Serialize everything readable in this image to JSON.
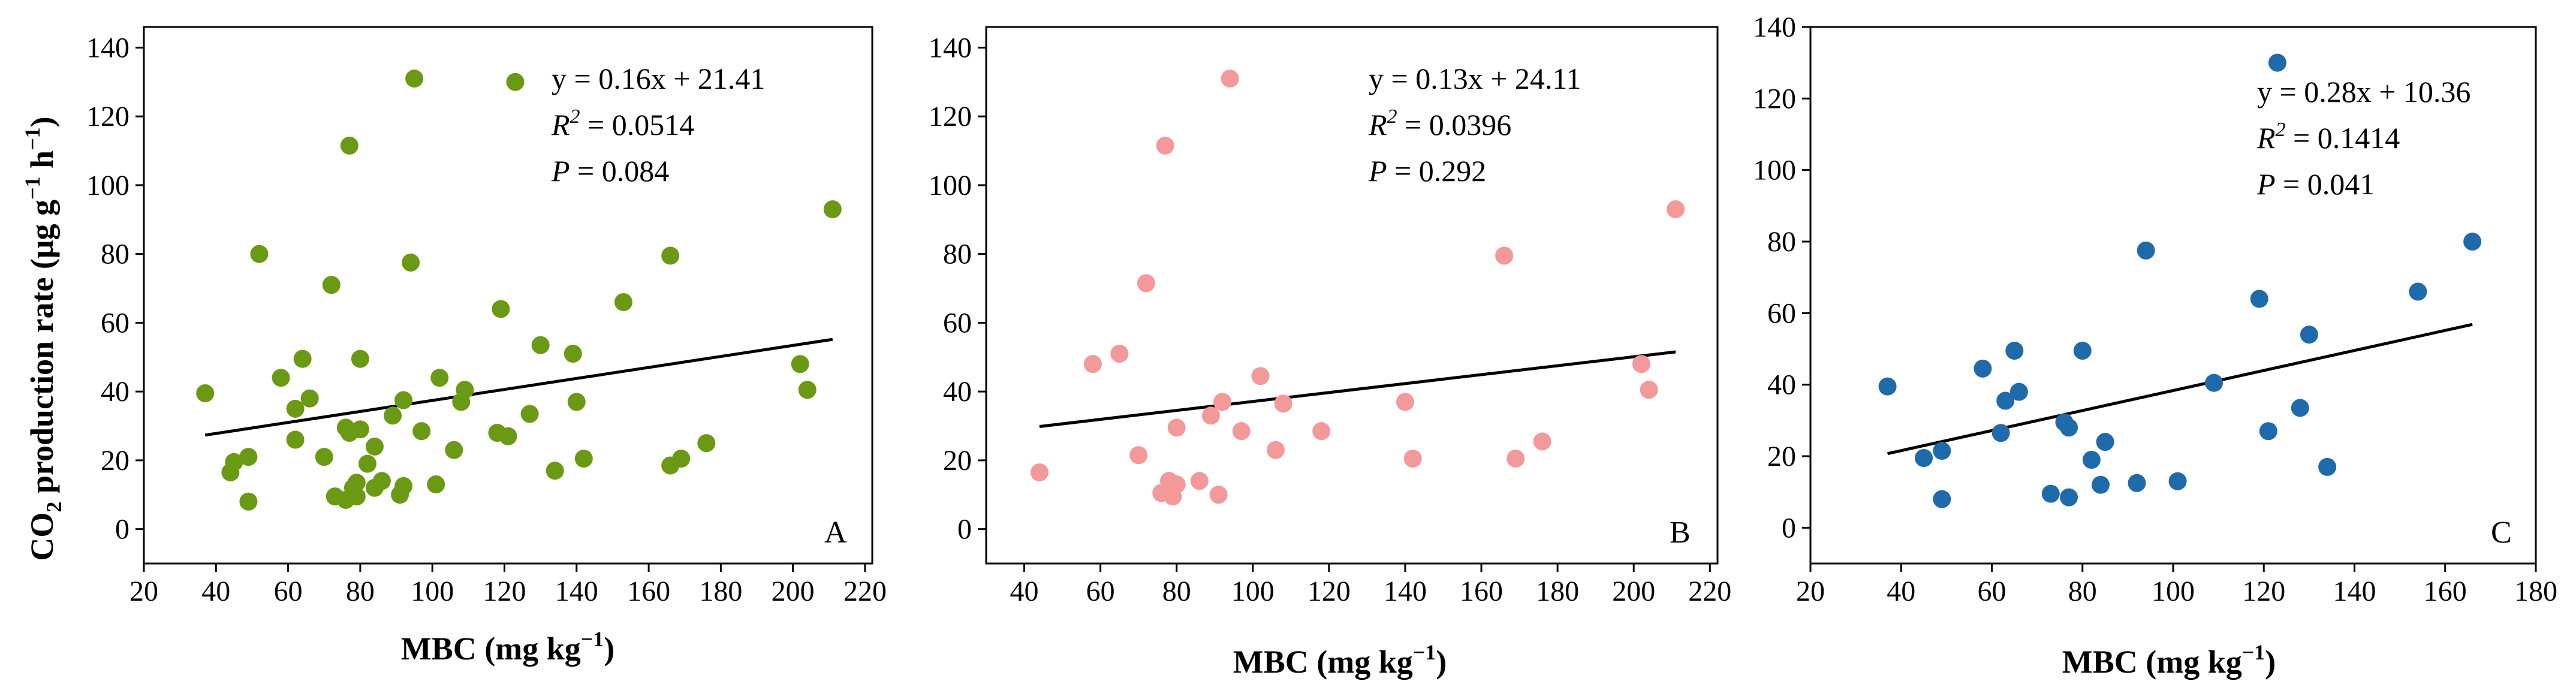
{
  "ylabel_parts": {
    "a": "CO",
    "sub": "2",
    "b": " production rate (μg g",
    "sup1": "−1",
    "c": " h",
    "sup2": "−1",
    "d": ")"
  },
  "colors": {
    "panelA": "#6a9a14",
    "panelB": "#f4999a",
    "panelC": "#1f6aab",
    "fit": "#000000"
  },
  "chart_data": [
    {
      "type": "scatter",
      "panel_letter": "A",
      "xlabel": "MBC (mg kg",
      "xlabel_sup": "−1",
      "xlabel_end": ")",
      "xlim": [
        20,
        222
      ],
      "ylim": [
        -10,
        146
      ],
      "xticks": [
        "20",
        "40",
        "60",
        "80",
        "100",
        "120",
        "140",
        "160",
        "180",
        "200",
        "220"
      ],
      "yticks": [
        "0",
        "20",
        "40",
        "60",
        "80",
        "100",
        "120",
        "140"
      ],
      "equation": "y = 0.16x + 21.41",
      "r2_label": "R",
      "r2_sup": "2",
      "r2_value": " = 0.0514",
      "p_label": "P",
      "p_value": " = 0.084",
      "fit": {
        "slope": 0.16,
        "intercept": 21.41,
        "x_range": [
          37,
          211
        ]
      },
      "points": [
        [
          37,
          39.5
        ],
        [
          44,
          16.5
        ],
        [
          45,
          19.5
        ],
        [
          49,
          21
        ],
        [
          49,
          8
        ],
        [
          52,
          80
        ],
        [
          58,
          44
        ],
        [
          62,
          26
        ],
        [
          62,
          35
        ],
        [
          64,
          49.5
        ],
        [
          66,
          38
        ],
        [
          70,
          21
        ],
        [
          72,
          71
        ],
        [
          73,
          9.5
        ],
        [
          76,
          8.5
        ],
        [
          76,
          29.5
        ],
        [
          77,
          111.5
        ],
        [
          77,
          28
        ],
        [
          78,
          12
        ],
        [
          79,
          13.5
        ],
        [
          79,
          9.5
        ],
        [
          80,
          29
        ],
        [
          80,
          49.5
        ],
        [
          82,
          19
        ],
        [
          84,
          24
        ],
        [
          84,
          12
        ],
        [
          86,
          14
        ],
        [
          89,
          33
        ],
        [
          91,
          10
        ],
        [
          92,
          12.5
        ],
        [
          92,
          37.5
        ],
        [
          94,
          77.5
        ],
        [
          95,
          131
        ],
        [
          97,
          28.5
        ],
        [
          101,
          13
        ],
        [
          102,
          44
        ],
        [
          106,
          23
        ],
        [
          108,
          37
        ],
        [
          109,
          40.5
        ],
        [
          118,
          28
        ],
        [
          119,
          64
        ],
        [
          121,
          27
        ],
        [
          123,
          130
        ],
        [
          127,
          33.5
        ],
        [
          130,
          53.5
        ],
        [
          134,
          17
        ],
        [
          139,
          51
        ],
        [
          140,
          37
        ],
        [
          142,
          20.5
        ],
        [
          153,
          66
        ],
        [
          166,
          79.5
        ],
        [
          166,
          18.5
        ],
        [
          169,
          20.5
        ],
        [
          176,
          25
        ],
        [
          202,
          48
        ],
        [
          204,
          40.5
        ],
        [
          211,
          93
        ]
      ]
    },
    {
      "type": "scatter",
      "panel_letter": "B",
      "xlabel": "MBC (mg kg",
      "xlabel_sup": "−1",
      "xlabel_end": ")",
      "xlim": [
        30,
        222
      ],
      "ylim": [
        -10,
        146
      ],
      "xticks": [
        "40",
        "60",
        "80",
        "100",
        "120",
        "140",
        "160",
        "180",
        "200",
        "220"
      ],
      "yticks": [
        "0",
        "20",
        "40",
        "60",
        "80",
        "100",
        "120",
        "140"
      ],
      "equation": "y = 0.13x + 24.11",
      "r2_label": "R",
      "r2_sup": "2",
      "r2_value": " = 0.0396",
      "p_label": "P",
      "p_value": " = 0.292",
      "fit": {
        "slope": 0.13,
        "intercept": 24.11,
        "x_range": [
          44,
          211
        ]
      },
      "points": [
        [
          44,
          16.5
        ],
        [
          58,
          48
        ],
        [
          65,
          51
        ],
        [
          70,
          21.5
        ],
        [
          72,
          71.5
        ],
        [
          76,
          10.5
        ],
        [
          77,
          111.5
        ],
        [
          78,
          14
        ],
        [
          79,
          9.5
        ],
        [
          80,
          29.5
        ],
        [
          80,
          13
        ],
        [
          86,
          14
        ],
        [
          89,
          33
        ],
        [
          91,
          10
        ],
        [
          92,
          37
        ],
        [
          94,
          131
        ],
        [
          97,
          28.5
        ],
        [
          102,
          44.5
        ],
        [
          106,
          23
        ],
        [
          108,
          36.5
        ],
        [
          118,
          28.5
        ],
        [
          140,
          37
        ],
        [
          142,
          20.5
        ],
        [
          166,
          79.5
        ],
        [
          169,
          20.5
        ],
        [
          176,
          25.5
        ],
        [
          202,
          48
        ],
        [
          204,
          40.5
        ],
        [
          211,
          93
        ]
      ]
    },
    {
      "type": "scatter",
      "panel_letter": "C",
      "xlabel": "MBC (mg kg",
      "xlabel_sup": "−1",
      "xlabel_end": ")",
      "xlim": [
        20,
        180
      ],
      "ylim": [
        -10,
        140
      ],
      "xticks": [
        "20",
        "40",
        "60",
        "80",
        "100",
        "120",
        "140",
        "160",
        "180"
      ],
      "yticks": [
        "0",
        "20",
        "40",
        "60",
        "80",
        "100",
        "120",
        "140"
      ],
      "equation": "y = 0.28x + 10.36",
      "r2_label": "R",
      "r2_sup": "2",
      "r2_value": " = 0.1414",
      "p_label": "P",
      "p_value": " = 0.041",
      "fit": {
        "slope": 0.28,
        "intercept": 10.36,
        "x_range": [
          37,
          166
        ]
      },
      "points": [
        [
          37,
          39.5
        ],
        [
          45,
          19.5
        ],
        [
          49,
          21.5
        ],
        [
          49,
          8
        ],
        [
          58,
          44.5
        ],
        [
          62,
          26.5
        ],
        [
          63,
          35.5
        ],
        [
          65,
          49.5
        ],
        [
          66,
          38
        ],
        [
          73,
          9.5
        ],
        [
          76,
          29.5
        ],
        [
          77,
          28
        ],
        [
          77,
          8.5
        ],
        [
          80,
          49.5
        ],
        [
          82,
          19
        ],
        [
          84,
          12
        ],
        [
          85,
          24
        ],
        [
          92,
          12.5
        ],
        [
          94,
          77.5
        ],
        [
          101,
          13
        ],
        [
          109,
          40.5
        ],
        [
          119,
          64
        ],
        [
          121,
          27
        ],
        [
          123,
          130
        ],
        [
          128,
          33.5
        ],
        [
          130,
          54
        ],
        [
          134,
          17
        ],
        [
          154,
          66
        ],
        [
          166,
          80
        ]
      ]
    }
  ]
}
